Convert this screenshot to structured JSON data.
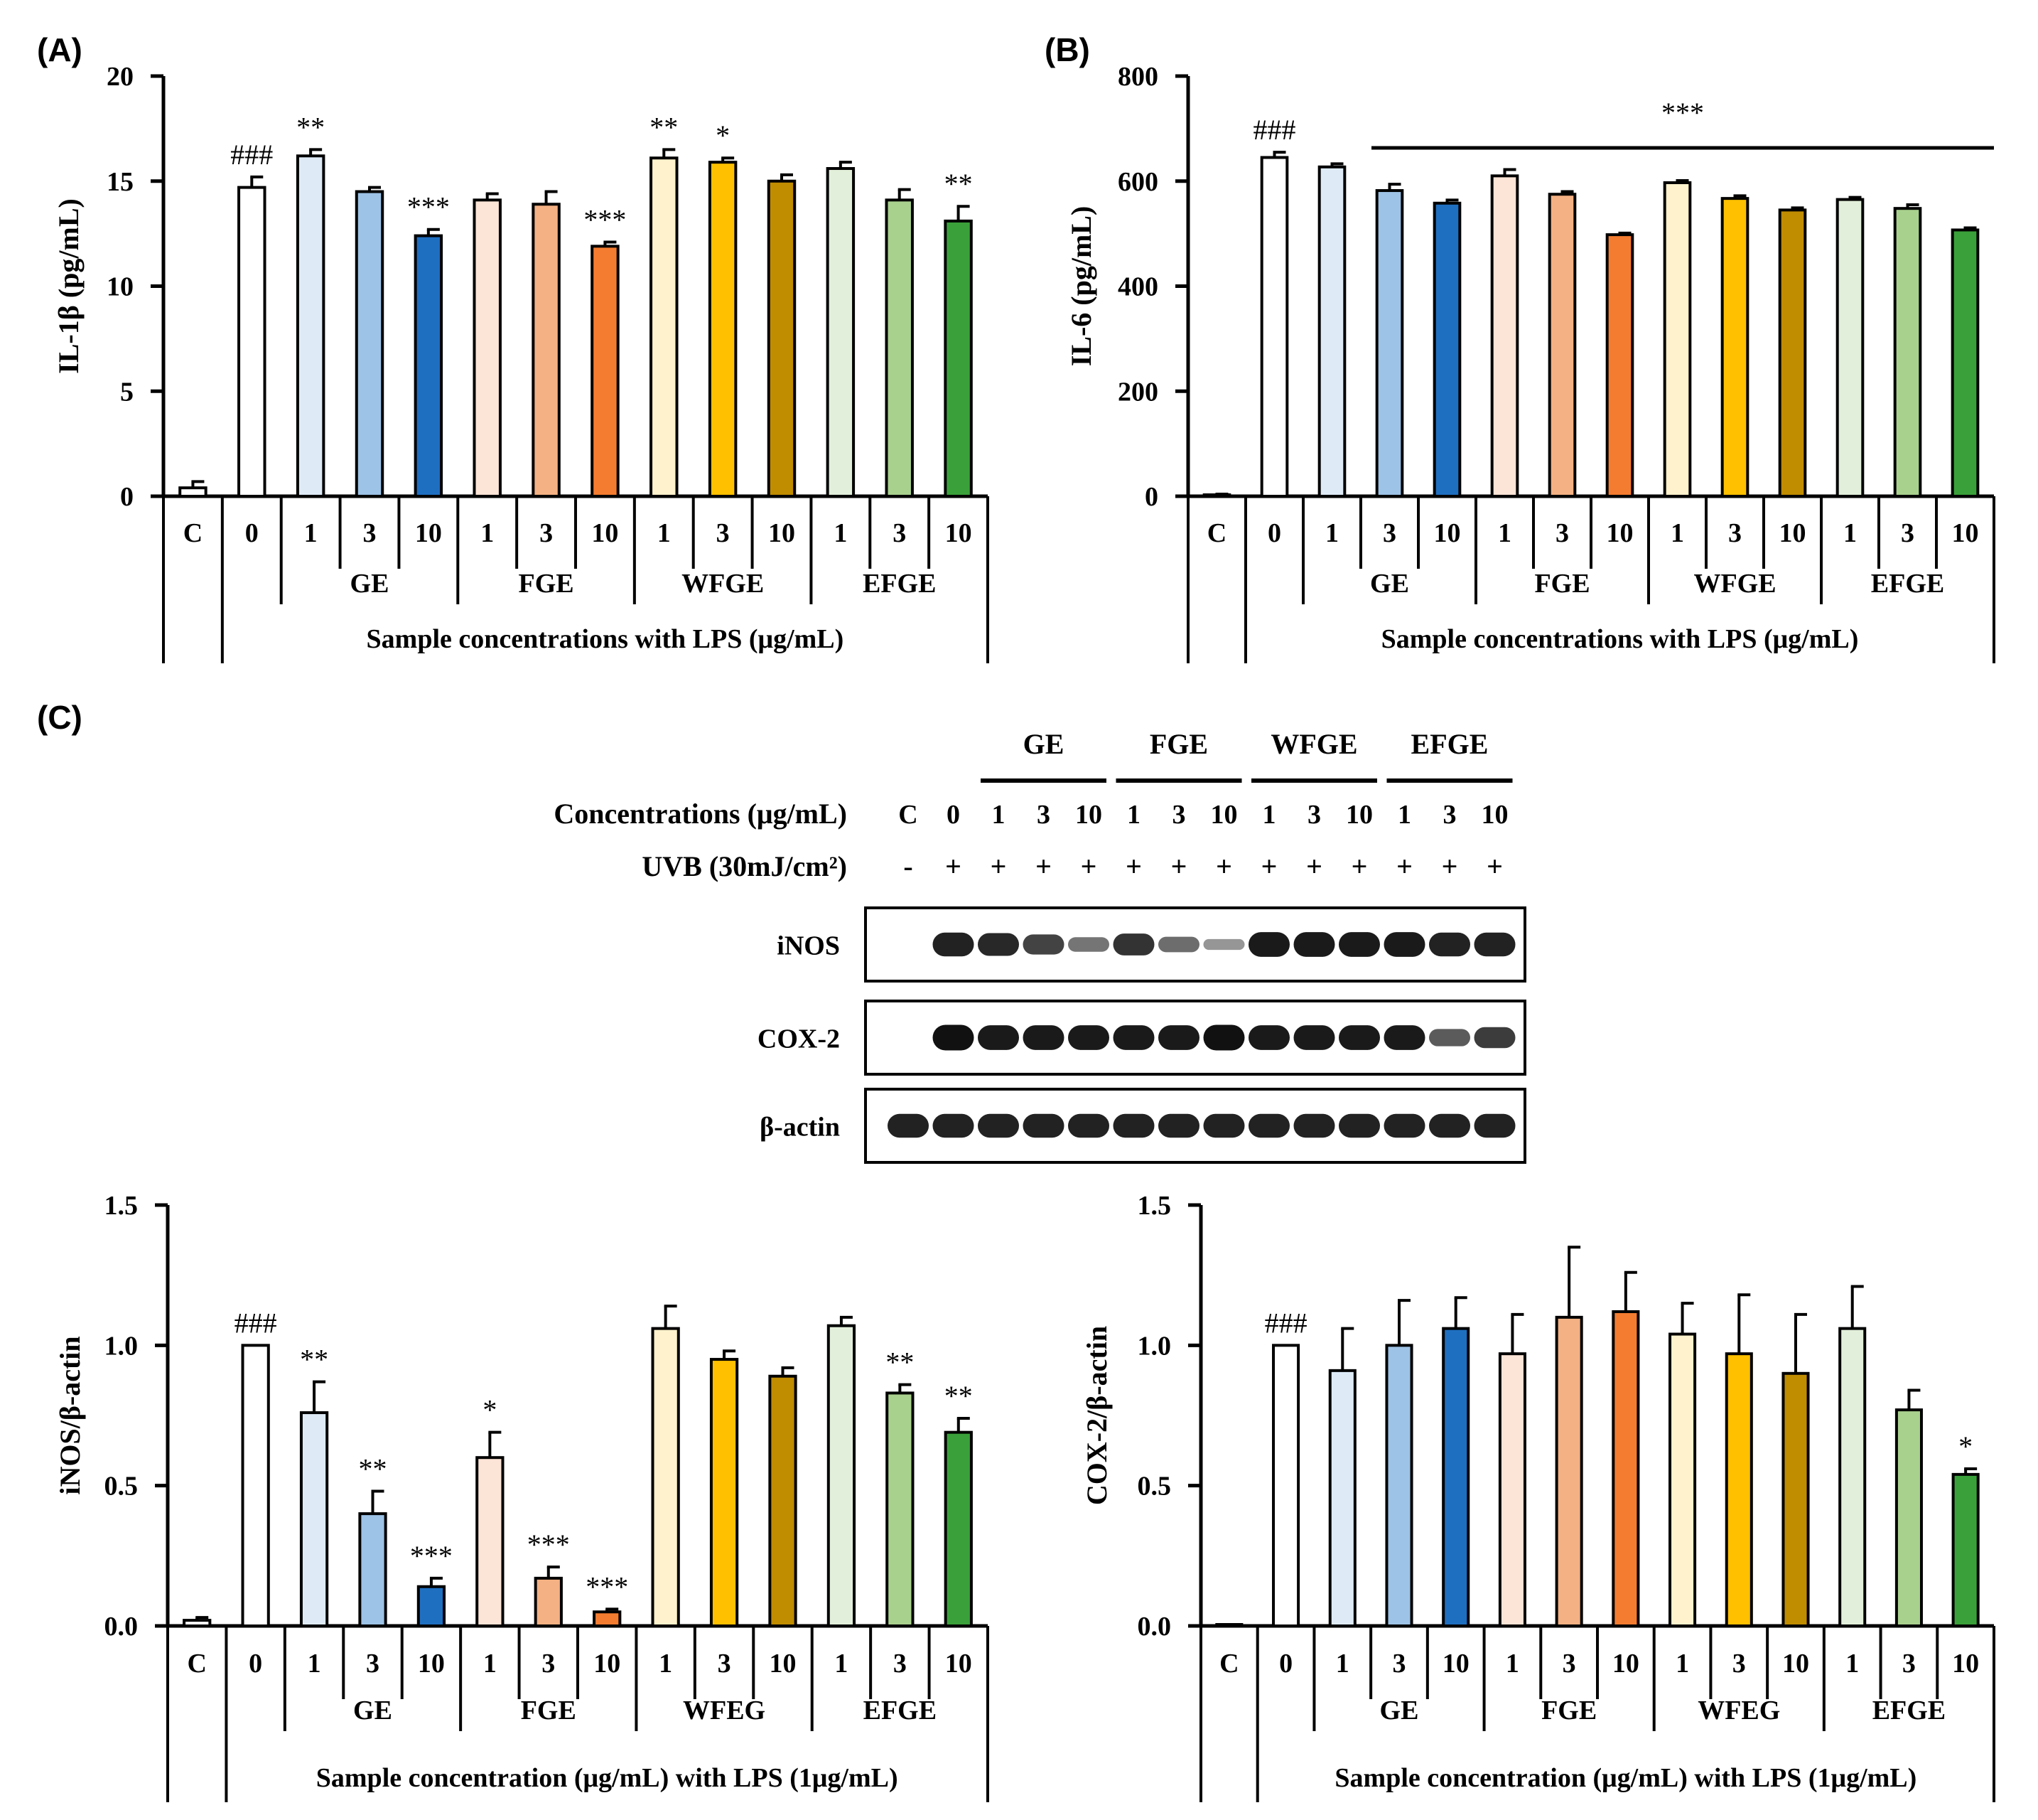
{
  "colors": {
    "axis": "#000000",
    "control": "#ffffff",
    "ge": [
      "#deebf7",
      "#9dc3e6",
      "#1f6fc1"
    ],
    "fge": [
      "#fce4d6",
      "#f4b183",
      "#f47c30"
    ],
    "wfge": [
      "#fff2cc",
      "#ffc000",
      "#c08c00"
    ],
    "efge": [
      "#e2efda",
      "#a9d18e",
      "#3aa13a"
    ]
  },
  "panels": [
    {
      "id": "A",
      "label": "(A)"
    },
    {
      "id": "B",
      "label": "(B)"
    },
    {
      "id": "C",
      "label": "(C)"
    }
  ],
  "blot": {
    "groups": [
      "GE",
      "FGE",
      "WFGE",
      "EFGE"
    ],
    "conc_title": "Concentrations (μg/mL)",
    "conc": [
      "C",
      "0",
      "1",
      "3",
      "10",
      "1",
      "3",
      "10",
      "1",
      "3",
      "10",
      "1",
      "3",
      "10"
    ],
    "uvb_title": "UVB (30mJ/cm²)",
    "uvb": [
      "-",
      "+",
      "+",
      "+",
      "+",
      "+",
      "+",
      "+",
      "+",
      "+",
      "+",
      "+",
      "+",
      "+"
    ],
    "rows": [
      {
        "name": "iNOS",
        "intensity": [
          0,
          0.9,
          0.85,
          0.7,
          0.4,
          0.8,
          0.45,
          0.2,
          0.95,
          0.95,
          0.95,
          0.95,
          0.9,
          0.9
        ]
      },
      {
        "name": "COX-2",
        "intensity": [
          0,
          1,
          0.95,
          0.95,
          0.95,
          0.95,
          0.95,
          1,
          0.95,
          0.95,
          0.95,
          0.95,
          0.55,
          0.75
        ]
      },
      {
        "name": "β-actin",
        "intensity": [
          0.9,
          0.9,
          0.9,
          0.9,
          0.9,
          0.9,
          0.9,
          0.9,
          0.9,
          0.9,
          0.9,
          0.9,
          0.9,
          0.9
        ]
      }
    ]
  },
  "chart_data": [
    {
      "panel": "A",
      "type": "bar",
      "ylabel": "IL-1β (pg/mL)",
      "xlabel": "Sample concentrations with LPS (μg/mL)",
      "ylim": [
        0,
        20
      ],
      "yticks": [
        "0",
        "5",
        "10",
        "15",
        "20"
      ],
      "categories": [
        "C",
        "0",
        "1",
        "3",
        "10",
        "1",
        "3",
        "10",
        "1",
        "3",
        "10",
        "1",
        "3",
        "10"
      ],
      "groups": [
        "GE",
        "FGE",
        "WFGE",
        "EFGE"
      ],
      "values": [
        0.4,
        14.7,
        16.2,
        14.5,
        12.4,
        14.1,
        13.9,
        11.9,
        16.1,
        15.9,
        15.0,
        15.6,
        14.1,
        13.1
      ],
      "errors": [
        0.3,
        0.5,
        0.3,
        0.2,
        0.3,
        0.3,
        0.6,
        0.2,
        0.4,
        0.2,
        0.3,
        0.3,
        0.5,
        0.7
      ],
      "annotations": [
        "",
        "###",
        "**",
        "",
        "***",
        "",
        "",
        "***",
        "**",
        "*",
        "",
        "",
        "",
        "**"
      ]
    },
    {
      "panel": "B",
      "type": "bar",
      "ylabel": "IL-6 (pg/mL)",
      "xlabel": "Sample concentrations with LPS (μg/mL)",
      "ylim": [
        0,
        800
      ],
      "yticks": [
        "0",
        "200",
        "400",
        "600",
        "800"
      ],
      "categories": [
        "C",
        "0",
        "1",
        "3",
        "10",
        "1",
        "3",
        "10",
        "1",
        "3",
        "10",
        "1",
        "3",
        "10"
      ],
      "groups": [
        "GE",
        "FGE",
        "WFGE",
        "EFGE"
      ],
      "values": [
        2,
        645,
        627,
        582,
        558,
        610,
        575,
        498,
        597,
        567,
        545,
        565,
        548,
        507
      ],
      "errors": [
        2,
        10,
        6,
        12,
        6,
        12,
        5,
        3,
        4,
        5,
        4,
        4,
        7,
        4
      ],
      "annotations": [
        "",
        "###",
        "",
        "",
        "",
        "",
        "",
        "",
        "",
        "",
        "",
        "",
        "",
        ""
      ],
      "bracket_label": "***"
    },
    {
      "panel": "C-left",
      "type": "bar",
      "ylabel": "iNOS/β-actin",
      "xlabel": "Sample concentration (μg/mL) with LPS (1μg/mL)",
      "ylim": [
        0,
        1.5
      ],
      "yticks": [
        "0.0",
        "0.5",
        "1.0",
        "1.5"
      ],
      "categories": [
        "C",
        "0",
        "1",
        "3",
        "10",
        "1",
        "3",
        "10",
        "1",
        "3",
        "10",
        "1",
        "3",
        "10"
      ],
      "groups": [
        "GE",
        "FGE",
        "WFEG",
        "EFGE"
      ],
      "values": [
        0.02,
        1.0,
        0.76,
        0.4,
        0.14,
        0.6,
        0.17,
        0.05,
        1.06,
        0.95,
        0.89,
        1.07,
        0.83,
        0.69
      ],
      "errors": [
        0.01,
        0.0,
        0.11,
        0.08,
        0.03,
        0.09,
        0.04,
        0.01,
        0.08,
        0.03,
        0.03,
        0.03,
        0.03,
        0.05
      ],
      "annotations": [
        "",
        "###",
        "**",
        "**",
        "***",
        "*",
        "***",
        "***",
        "",
        "",
        "",
        "",
        "**",
        "**"
      ]
    },
    {
      "panel": "C-right",
      "type": "bar",
      "ylabel": "COX-2/β-actin",
      "xlabel": "Sample concentration (μg/mL) with LPS (1μg/mL)",
      "ylim": [
        0,
        1.5
      ],
      "yticks": [
        "0.0",
        "0.5",
        "1.0",
        "1.5"
      ],
      "categories": [
        "C",
        "0",
        "1",
        "3",
        "10",
        "1",
        "3",
        "10",
        "1",
        "3",
        "10",
        "1",
        "3",
        "10"
      ],
      "groups": [
        "GE",
        "FGE",
        "WFEG",
        "EFGE"
      ],
      "values": [
        0.0,
        1.0,
        0.91,
        1.0,
        1.06,
        0.97,
        1.1,
        1.12,
        1.04,
        0.97,
        0.9,
        1.06,
        0.77,
        0.54
      ],
      "errors": [
        0.0,
        0.0,
        0.15,
        0.16,
        0.11,
        0.14,
        0.25,
        0.14,
        0.11,
        0.21,
        0.21,
        0.15,
        0.07,
        0.02
      ],
      "annotations": [
        "",
        "###",
        "",
        "",
        "",
        "",
        "",
        "",
        "",
        "",
        "",
        "",
        "",
        "*"
      ]
    }
  ]
}
